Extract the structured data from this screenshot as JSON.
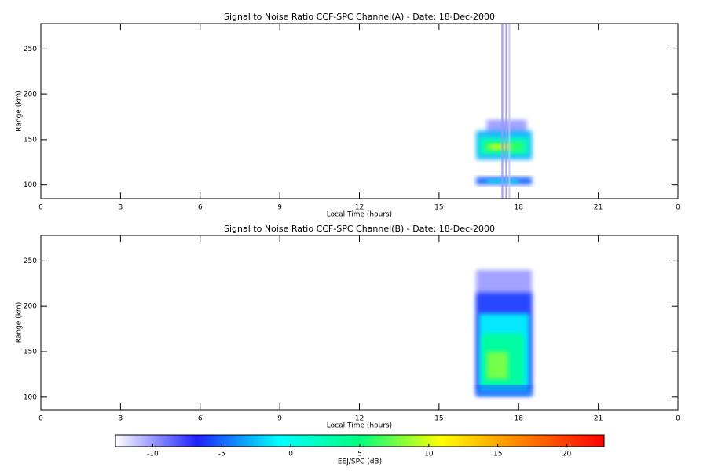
{
  "chart_data": [
    {
      "type": "heatmap",
      "title": "Signal to Noise Ratio CCF-SPC Channel(A) - Date: 18-Dec-2000",
      "xlabel": "Local Time (hours)",
      "ylabel": "Range (km)",
      "xlim": [
        0,
        24
      ],
      "xticks": [
        0,
        3,
        6,
        9,
        12,
        15,
        18,
        21,
        {
          "value": 24,
          "label": "0"
        }
      ],
      "ylim": [
        85,
        278
      ],
      "yticks": [
        100,
        150,
        200,
        250
      ],
      "cells": [
        {
          "time": [
            16.8,
            18.3
          ],
          "range": [
            155,
            172
          ],
          "value": -10
        },
        {
          "time": [
            16.4,
            18.5
          ],
          "range": [
            128,
            160
          ],
          "value": -3
        },
        {
          "time": [
            16.5,
            18.4
          ],
          "range": [
            133,
            153
          ],
          "value": 2
        },
        {
          "time": [
            16.7,
            18.2
          ],
          "range": [
            136,
            148
          ],
          "value": 6
        },
        {
          "time": [
            16.9,
            17.7
          ],
          "range": [
            139,
            145
          ],
          "value": 10
        },
        {
          "time": [
            16.4,
            18.5
          ],
          "range": [
            100,
            109
          ],
          "value": -5
        },
        {
          "time": [
            16.8,
            18.0
          ],
          "range": [
            102,
            106
          ],
          "value": 0
        },
        {
          "time": [
            17.35,
            17.42
          ],
          "range": [
            85,
            278
          ],
          "value": -10
        },
        {
          "time": [
            17.5,
            17.56
          ],
          "range": [
            85,
            278
          ],
          "value": -10
        },
        {
          "time": [
            17.62,
            17.68
          ],
          "range": [
            85,
            278
          ],
          "value": -11
        }
      ]
    },
    {
      "type": "heatmap",
      "title": "Signal to Noise Ratio CCF-SPC Channel(B) - Date: 18-Dec-2000",
      "xlabel": "Local Time (hours)",
      "ylabel": "Range (km)",
      "xlim": [
        0,
        24
      ],
      "xticks": [
        0,
        3,
        6,
        9,
        12,
        15,
        18,
        21,
        {
          "value": 24,
          "label": "0"
        }
      ],
      "ylim": [
        86,
        278
      ],
      "yticks": [
        100,
        150,
        200,
        250
      ],
      "cells": [
        {
          "time": [
            16.4,
            18.5
          ],
          "range": [
            100,
            240
          ],
          "value": -10
        },
        {
          "time": [
            16.4,
            18.5
          ],
          "range": [
            104,
            215
          ],
          "value": -6
        },
        {
          "time": [
            16.5,
            18.4
          ],
          "range": [
            108,
            192
          ],
          "value": -1
        },
        {
          "time": [
            16.6,
            18.2
          ],
          "range": [
            112,
            170
          ],
          "value": 4
        },
        {
          "time": [
            16.8,
            17.6
          ],
          "range": [
            120,
            150
          ],
          "value": 8
        },
        {
          "time": [
            16.4,
            18.5
          ],
          "range": [
            101,
            107
          ],
          "value": -4
        },
        {
          "time": [
            16.4,
            18.5
          ],
          "range": [
            110,
            113
          ],
          "value": -6
        }
      ]
    },
    {
      "type": "colorbar",
      "label": "EEJ/SPC (dB)",
      "clim": [
        -12.7,
        22.7
      ],
      "cticks": [
        -10,
        -5,
        0,
        5,
        10,
        15,
        20
      ],
      "colormap": [
        "#ffffff",
        "#2020ff",
        "#00ffff",
        "#00ff80",
        "#ffff00",
        "#ff8000",
        "#ff0000"
      ]
    }
  ]
}
